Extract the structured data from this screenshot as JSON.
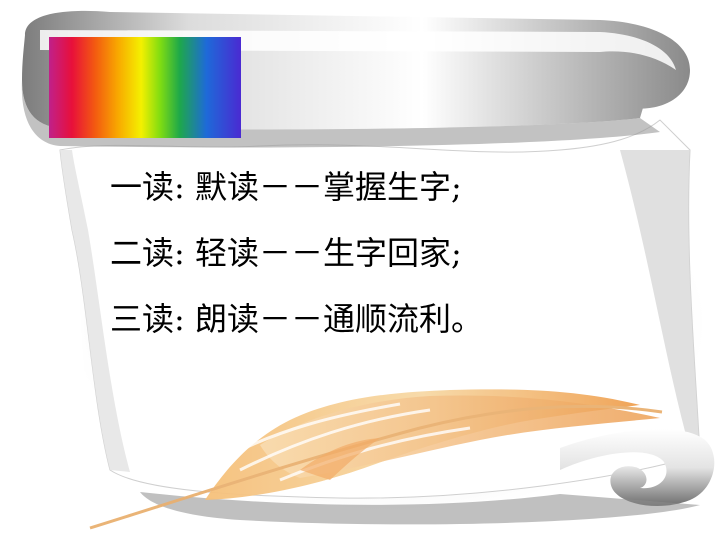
{
  "slide": {
    "lines": [
      "一读: 默读－－掌握生字;",
      "二读: 轻读－－生字回家;",
      "三读: 朗读－－通顺流利。"
    ]
  },
  "icons": {
    "decor": "rainbow-gradient-bar",
    "background": "paper-scroll",
    "ornament": "feather-quill"
  },
  "colors": {
    "text": "#000000",
    "scroll": "#ffffff",
    "feather": "#f2a860"
  }
}
